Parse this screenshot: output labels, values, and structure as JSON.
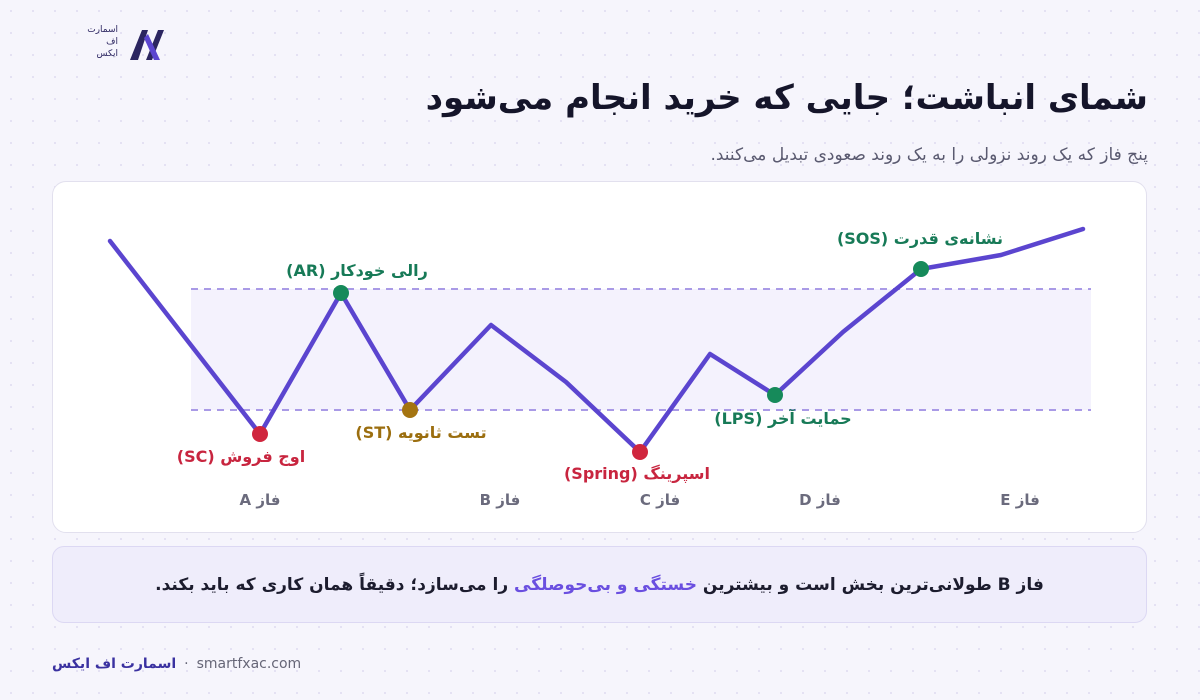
{
  "logo": {
    "text_line1": "اسمارت",
    "text_line2": "اف",
    "text_line3": "ایکس"
  },
  "header": {
    "title": "شمای انباشت؛ جایی که خرید انجام می‌شود",
    "subtitle": "پنج فاز که یک روند نزولی را به یک روند صعودی تبدیل می‌کنند."
  },
  "colors": {
    "line": "#5b45cf",
    "range_line": "#a99ae6",
    "sc": "#d0263e",
    "st": "#a47411",
    "spring": "#d0263e",
    "ar": "#168a5a",
    "lps": "#168a5a",
    "sos": "#168a5a"
  },
  "diagram": {
    "events": {
      "sc": "اوج فروش (SC)",
      "ar": "رالی خودکار (AR)",
      "st": "تست ثانویه (ST)",
      "spring": "اسپرینگ (Spring)",
      "lps": "حمایت آخر (LPS)",
      "sos": "نشانه‌ی قدرت (SOS)"
    },
    "phases": [
      "فاز A",
      "فاز B",
      "فاز C",
      "فاز D",
      "فاز E"
    ]
  },
  "note": {
    "part1": "فاز B طولانی‌ترین بخش است و بیشترین",
    "highlight": "خستگی و بی‌حوصلگی",
    "part2": "را می‌سازد؛ دقیقاً همان کاری که باید بکند."
  },
  "footer": {
    "brand": "اسمارت اف ایکس",
    "separator": "·",
    "website": "smartfxac.com"
  }
}
